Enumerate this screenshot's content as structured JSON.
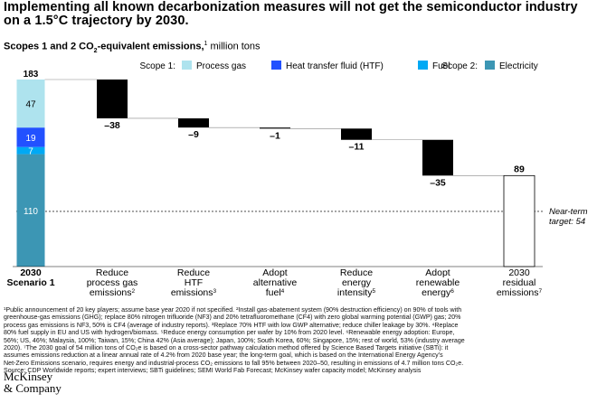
{
  "header": {
    "title": "Implementing all known decarbonization measures will not get the semiconductor industry on a 1.5°C trajectory by 2030.",
    "subtitle_bold": "Scopes 1 and 2 CO",
    "subtitle_sub": "2",
    "subtitle_bold_end": "-equivalent emissions,",
    "subtitle_sup": "1",
    "subtitle_unit": " million tons"
  },
  "chart_data": {
    "type": "waterfall",
    "unit": "million tons CO2e",
    "ylim": [
      0,
      183
    ],
    "legend": {
      "scope1_label": "Scope 1:",
      "scope2_label": "Scope 2:",
      "items": [
        {
          "name": "Process gas",
          "color": "#aee3ee"
        },
        {
          "name": "Heat transfer fluid (HTF)",
          "color": "#2251ff"
        },
        {
          "name": "Fuel",
          "color": "#00a9f4"
        },
        {
          "name": "Electricity",
          "color": "#3c96b4"
        }
      ]
    },
    "start": {
      "label_line1": "2030",
      "label_line2": "Scenario 1",
      "total": 183,
      "segments": [
        {
          "name": "Electricity",
          "value": 110,
          "color": "#3c96b4"
        },
        {
          "name": "Fuel",
          "value": 7,
          "color": "#00a9f4"
        },
        {
          "name": "Heat transfer fluid (HTF)",
          "value": 19,
          "color": "#2251ff"
        },
        {
          "name": "Process gas",
          "value": 47,
          "color": "#aee3ee"
        }
      ]
    },
    "steps": [
      {
        "label_lines": [
          "Reduce",
          "process gas",
          "emissions"
        ],
        "sup": "2",
        "value": -38,
        "display": "–38"
      },
      {
        "label_lines": [
          "Reduce",
          "HTF",
          "emissions"
        ],
        "sup": "3",
        "value": -9,
        "display": "–9"
      },
      {
        "label_lines": [
          "Adopt",
          "alternative",
          "fuel"
        ],
        "sup": "4",
        "value": -1,
        "display": "–1"
      },
      {
        "label_lines": [
          "Reduce",
          "energy",
          "intensity"
        ],
        "sup": "5",
        "value": -11,
        "display": "–11"
      },
      {
        "label_lines": [
          "Adopt",
          "renewable",
          "energy"
        ],
        "sup": "6",
        "value": -35,
        "display": "–35"
      }
    ],
    "end": {
      "label_lines": [
        "2030",
        "residual",
        "emissions"
      ],
      "sup": "7",
      "value": 89
    },
    "target": {
      "label_line1": "Near-term",
      "label_line2": "target: 54",
      "value": 54
    }
  },
  "footnotes": {
    "lines": [
      "¹Public announcement of 20 key players; assume base year 2020 if not specified. ²Install gas-abatement system (90% destruction efficiency) on 90% of tools with",
      "greenhouse-gas emissions (GHG); replace 80% nitrogen trifluoride (NF3) and 20% tetrafluoromethane (CF4) with zero global warming potential (GWP) gas; 20%",
      "process gas emissions is NF3, 50% is CF4 (average of industry reports). ³Replace 70% HTF with low GWP alternative; reduce chiller leakage by 30%. ⁴Replace",
      "80% fuel supply in EU and US with hydrogen/biomass. ⁵Reduce energy consumption per wafer by 10% from 2020 level. ⁶Renewable energy adoption: Europe,",
      "56%; US, 46%; Malaysia, 100%; Taiwan, 15%; China 42% (Asia average); Japan, 100%; South Korea, 60%; Singapore, 15%; rest of world, 53% (industry average",
      "2020). ⁷The 2030 goal of 54 million tons of CO₂e is based on a cross-sector pathway calculation method offered by Science Based Targets initiative (SBTi): it",
      "assumes emissions reduction at a linear annual rate of 4.2% from 2020 base year; the long-term goal, which is based on the International Energy Agency’s",
      "Net-Zero Emissions scenario, requires energy and industrial-process CO₂ emissions to fall 95% between 2020–50, resulting in emissions of 4.7 million tons CO₂e.",
      "Source: CDP Worldwide reports; expert interviews; SBTi guidelines; SEMI World Fab Forecast; McKinsey wafer capacity model; McKinsey analysis"
    ]
  },
  "brand": {
    "line1": "McKinsey",
    "line2": "& Company"
  }
}
